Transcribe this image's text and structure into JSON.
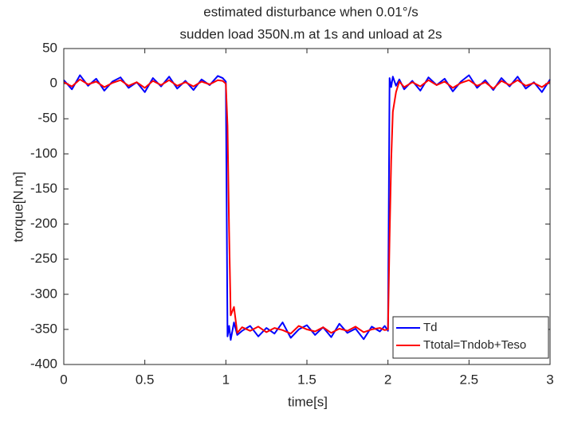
{
  "chart_data": {
    "type": "line",
    "title": [
      "estimated disturbance when 0.01°/s",
      "sudden load 350N.m at 1s and unload at 2s"
    ],
    "xlabel": "time[s]",
    "ylabel": "torque[N.m]",
    "x": [
      0,
      0.05,
      0.1,
      0.15,
      0.2,
      0.25,
      0.3,
      0.35,
      0.4,
      0.45,
      0.5,
      0.55,
      0.6,
      0.65,
      0.7,
      0.75,
      0.8,
      0.85,
      0.9,
      0.95,
      0.98,
      1.0,
      1.01,
      1.02,
      1.03,
      1.05,
      1.07,
      1.1,
      1.15,
      1.2,
      1.25,
      1.3,
      1.35,
      1.4,
      1.45,
      1.5,
      1.55,
      1.6,
      1.65,
      1.7,
      1.75,
      1.8,
      1.85,
      1.9,
      1.95,
      1.98,
      2.0,
      2.01,
      2.02,
      2.03,
      2.05,
      2.07,
      2.1,
      2.15,
      2.2,
      2.25,
      2.3,
      2.35,
      2.4,
      2.45,
      2.5,
      2.55,
      2.6,
      2.65,
      2.7,
      2.75,
      2.8,
      2.85,
      2.9,
      2.95,
      3.0
    ],
    "series": [
      {
        "name": "Td",
        "color": "#0000ff",
        "values": [
          5,
          -8,
          12,
          -3,
          7,
          -10,
          3,
          9,
          -6,
          2,
          -12,
          8,
          -4,
          10,
          -7,
          4,
          -9,
          6,
          -2,
          11,
          8,
          3,
          -360,
          -345,
          -365,
          -340,
          -358,
          -352,
          -345,
          -360,
          -348,
          -356,
          -340,
          -362,
          -350,
          -344,
          -358,
          -347,
          -361,
          -342,
          -355,
          -349,
          -364,
          -346,
          -353,
          -345,
          -352,
          8,
          -5,
          10,
          -3,
          6,
          -8,
          4,
          -10,
          9,
          -2,
          7,
          -11,
          3,
          12,
          -6,
          5,
          -9,
          8,
          -4,
          10,
          -7,
          2,
          -12,
          6
        ]
      },
      {
        "name": "Ttotal=Tndob+Teso",
        "color": "#ff0000",
        "values": [
          2,
          -4,
          6,
          -1,
          3,
          -5,
          1,
          5,
          -3,
          2,
          -6,
          4,
          -2,
          5,
          -3,
          2,
          -4,
          3,
          -1,
          5,
          4,
          0,
          -60,
          -210,
          -330,
          -318,
          -355,
          -347,
          -352,
          -346,
          -354,
          -348,
          -351,
          -356,
          -345,
          -350,
          -353,
          -347,
          -355,
          -349,
          -352,
          -346,
          -354,
          -350,
          -348,
          -351,
          -350,
          -220,
          -110,
          -40,
          -12,
          3,
          -5,
          2,
          -4,
          5,
          -2,
          3,
          -6,
          1,
          5,
          -3,
          2,
          -7,
          4,
          -2,
          5,
          -3,
          1,
          -5,
          3
        ]
      }
    ],
    "xlim": [
      0,
      3
    ],
    "xticks": [
      0,
      0.5,
      1,
      1.5,
      2,
      2.5,
      3
    ],
    "ylim": [
      -400,
      50
    ],
    "yticks": [
      50,
      0,
      -50,
      -100,
      -150,
      -200,
      -250,
      -300,
      -350,
      -400
    ],
    "legend": "southeast"
  }
}
